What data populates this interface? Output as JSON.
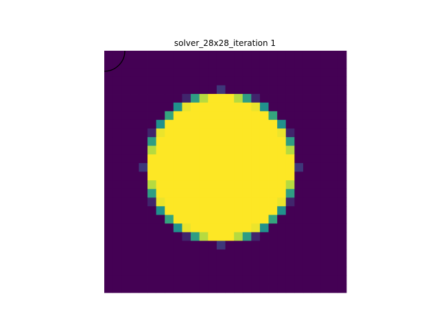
{
  "chart_data": {
    "type": "heatmap",
    "title": "solver_28x28_iteration 1",
    "grid_size": [
      28,
      28
    ],
    "value_range": [
      0,
      1
    ],
    "colormap": "viridis",
    "axes_visible": false,
    "circle": {
      "center": [
        13.5,
        13.5
      ],
      "radius": 8.6
    },
    "arc_marker": {
      "corner": "top-left",
      "shape": "circle-outline"
    }
  }
}
